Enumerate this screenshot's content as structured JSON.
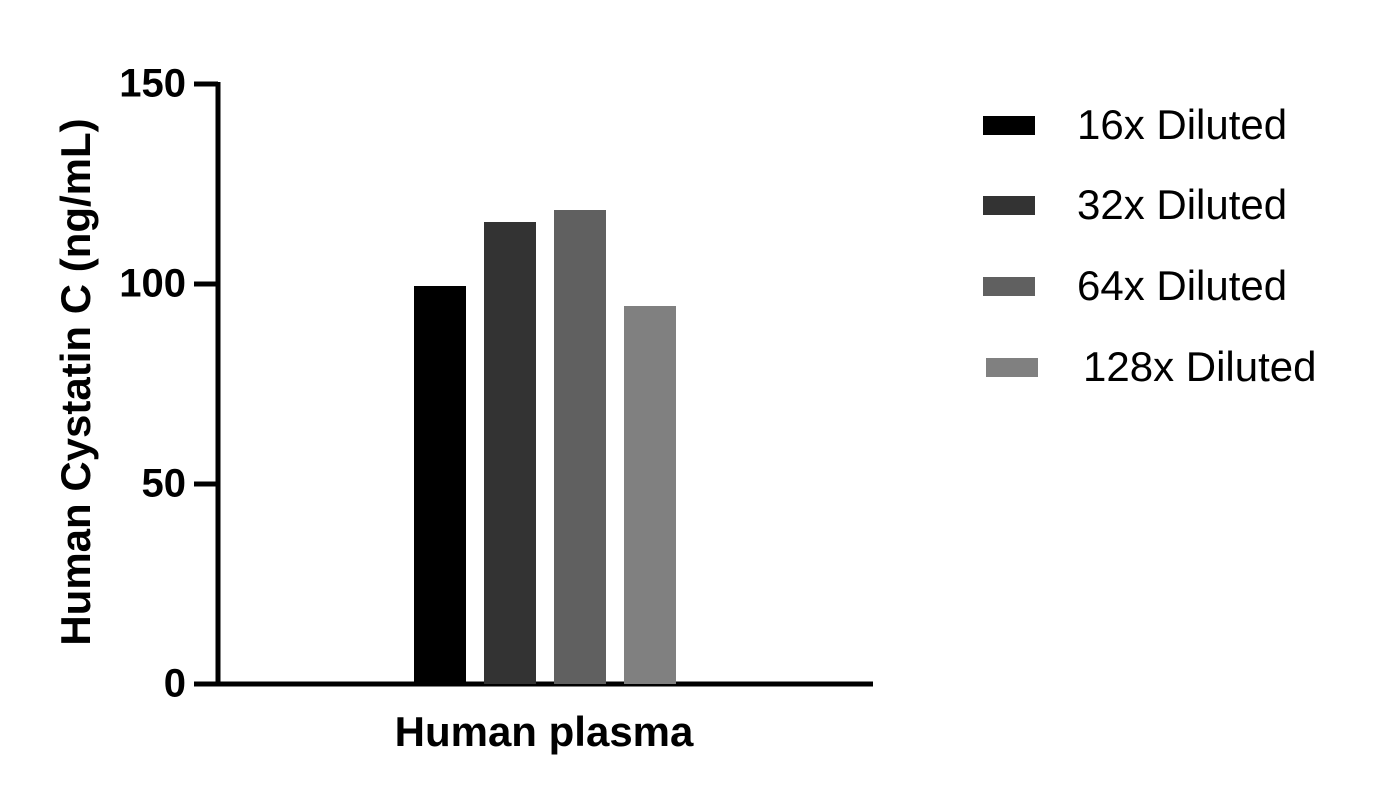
{
  "chart_data": {
    "type": "bar",
    "title": "",
    "xlabel": "Human plasma",
    "ylabel": "Human Cystatin C (ng/mL)",
    "categories": [
      "Human plasma"
    ],
    "series": [
      {
        "name": "16x Diluted",
        "values": [
          99.5
        ],
        "color": "#000000"
      },
      {
        "name": "32x Diluted",
        "values": [
          115.5
        ],
        "color": "#333333"
      },
      {
        "name": "64x Diluted",
        "values": [
          118.5
        ],
        "color": "#606060"
      },
      {
        "name": "128x Diluted",
        "values": [
          94.5
        ],
        "color": "#808080"
      }
    ],
    "ylim": [
      0,
      150
    ],
    "yticks": [
      0,
      50,
      100,
      150
    ],
    "grid": false,
    "legend_position": "right"
  },
  "axis": {
    "ytick_labels": [
      "0",
      "50",
      "100",
      "150"
    ]
  },
  "legend": {
    "items": [
      {
        "label": "16x Diluted",
        "color": "#000000"
      },
      {
        "label": "32x Diluted",
        "color": "#333333"
      },
      {
        "label": "64x Diluted",
        "color": "#606060"
      },
      {
        "label": "128x Diluted",
        "color": "#808080"
      }
    ]
  }
}
